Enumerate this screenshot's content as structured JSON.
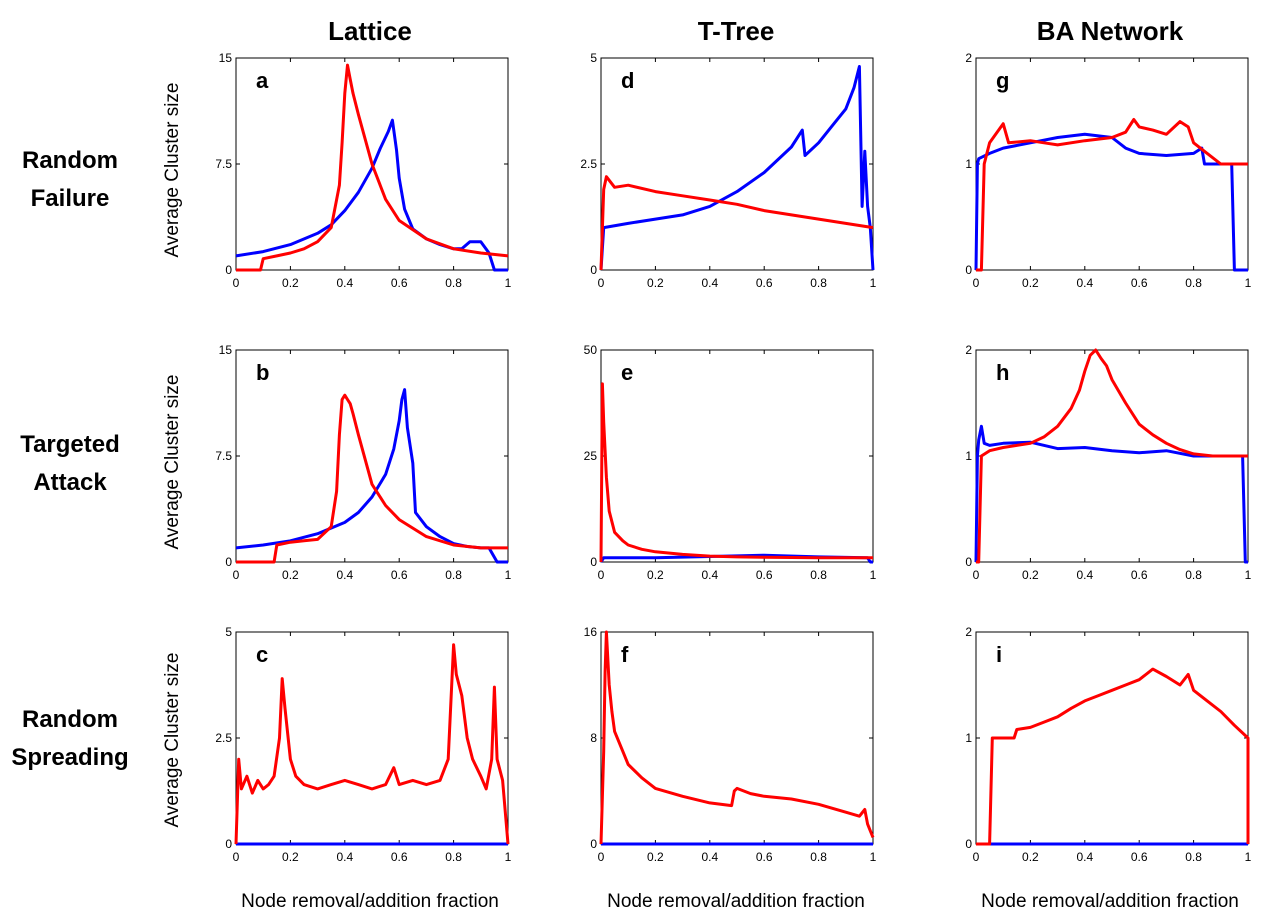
{
  "column_titles": [
    "Lattice",
    "T-Tree",
    "BA Network"
  ],
  "row_titles": [
    [
      "Random",
      "Failure"
    ],
    [
      "Targeted",
      "Attack"
    ],
    [
      "Random",
      "Spreading"
    ]
  ],
  "y_axis_label": "Average Cluster size",
  "x_axis_label": "Node removal/addition fraction",
  "colors": {
    "series_a": "#0000ff",
    "series_b": "#ff0000"
  },
  "chart_data": [
    {
      "panel": "a",
      "type": "line",
      "xlim": [
        0,
        1
      ],
      "ylim": [
        0,
        15
      ],
      "yticks": [
        "0",
        "7.5",
        "15"
      ],
      "xticks": [
        "0",
        "0.2",
        "0.4",
        "0.6",
        "0.8",
        "1"
      ],
      "series": [
        {
          "color": "blue",
          "x": [
            0,
            0.1,
            0.2,
            0.3,
            0.35,
            0.4,
            0.45,
            0.5,
            0.53,
            0.56,
            0.575,
            0.59,
            0.6,
            0.62,
            0.65,
            0.7,
            0.75,
            0.8,
            0.83,
            0.86,
            0.9,
            0.93,
            0.95,
            1
          ],
          "y": [
            1,
            1.3,
            1.8,
            2.6,
            3.2,
            4.2,
            5.5,
            7.2,
            8.6,
            9.8,
            10.6,
            8.5,
            6.5,
            4.3,
            2.9,
            2.2,
            1.8,
            1.5,
            1.5,
            2,
            2,
            1.2,
            0,
            0
          ]
        },
        {
          "color": "red",
          "x": [
            0,
            0.09,
            0.1,
            0.15,
            0.2,
            0.25,
            0.3,
            0.35,
            0.38,
            0.39,
            0.4,
            0.41,
            0.42,
            0.43,
            0.45,
            0.5,
            0.55,
            0.6,
            0.7,
            0.8,
            0.9,
            1
          ],
          "y": [
            0,
            0,
            0.8,
            1,
            1.2,
            1.5,
            2,
            3,
            6,
            9,
            12.5,
            14.5,
            13.5,
            12.5,
            11,
            7.5,
            5,
            3.5,
            2.2,
            1.5,
            1.2,
            1
          ]
        }
      ]
    },
    {
      "panel": "b",
      "type": "line",
      "xlim": [
        0,
        1
      ],
      "ylim": [
        0,
        15
      ],
      "yticks": [
        "0",
        "7.5",
        "15"
      ],
      "xticks": [
        "0",
        "0.2",
        "0.4",
        "0.6",
        "0.8",
        "1"
      ],
      "series": [
        {
          "color": "blue",
          "x": [
            0,
            0.1,
            0.2,
            0.3,
            0.4,
            0.45,
            0.5,
            0.55,
            0.58,
            0.6,
            0.61,
            0.62,
            0.63,
            0.65,
            0.66,
            0.7,
            0.75,
            0.8,
            0.85,
            0.9,
            0.93,
            0.96,
            1
          ],
          "y": [
            1,
            1.2,
            1.5,
            2,
            2.8,
            3.5,
            4.6,
            6.2,
            8,
            10,
            11.5,
            12.2,
            9.5,
            7,
            3.5,
            2.5,
            1.8,
            1.3,
            1.1,
            1,
            1,
            0,
            0
          ]
        },
        {
          "color": "red",
          "x": [
            0,
            0.14,
            0.15,
            0.2,
            0.25,
            0.3,
            0.35,
            0.37,
            0.38,
            0.39,
            0.4,
            0.41,
            0.42,
            0.43,
            0.45,
            0.5,
            0.55,
            0.6,
            0.7,
            0.8,
            0.9,
            1
          ],
          "y": [
            0,
            0,
            1.2,
            1.4,
            1.5,
            1.6,
            2.5,
            5,
            9,
            11.5,
            11.8,
            11.5,
            11.2,
            10.5,
            9,
            5.5,
            4,
            3,
            1.8,
            1.2,
            1,
            1
          ]
        }
      ]
    },
    {
      "panel": "c",
      "type": "line",
      "xlim": [
        0,
        1
      ],
      "ylim": [
        0,
        5
      ],
      "yticks": [
        "0",
        "2.5",
        "5"
      ],
      "xticks": [
        "0",
        "0.2",
        "0.4",
        "0.6",
        "0.8",
        "1"
      ],
      "series": [
        {
          "color": "blue",
          "x": [
            0,
            1
          ],
          "y": [
            0,
            0
          ]
        },
        {
          "color": "red",
          "x": [
            0,
            0.01,
            0.02,
            0.04,
            0.06,
            0.08,
            0.1,
            0.12,
            0.14,
            0.16,
            0.17,
            0.18,
            0.2,
            0.22,
            0.25,
            0.3,
            0.35,
            0.4,
            0.45,
            0.5,
            0.55,
            0.58,
            0.6,
            0.65,
            0.7,
            0.75,
            0.78,
            0.8,
            0.81,
            0.83,
            0.85,
            0.87,
            0.9,
            0.92,
            0.94,
            0.95,
            0.96,
            0.98,
            1
          ],
          "y": [
            0,
            2,
            1.3,
            1.6,
            1.2,
            1.5,
            1.3,
            1.4,
            1.6,
            2.5,
            3.9,
            3.2,
            2,
            1.6,
            1.4,
            1.3,
            1.4,
            1.5,
            1.4,
            1.3,
            1.4,
            1.8,
            1.4,
            1.5,
            1.4,
            1.5,
            2,
            4.7,
            4,
            3.5,
            2.5,
            2,
            1.6,
            1.3,
            2,
            3.7,
            2,
            1.5,
            0
          ]
        }
      ]
    },
    {
      "panel": "d",
      "type": "line",
      "xlim": [
        0,
        1
      ],
      "ylim": [
        0,
        5
      ],
      "yticks": [
        "0",
        "2.5",
        "5"
      ],
      "xticks": [
        "0",
        "0.2",
        "0.4",
        "0.6",
        "0.8",
        "1"
      ],
      "series": [
        {
          "color": "blue",
          "x": [
            0,
            0.01,
            0.1,
            0.2,
            0.3,
            0.4,
            0.5,
            0.6,
            0.7,
            0.74,
            0.75,
            0.8,
            0.85,
            0.9,
            0.93,
            0.95,
            0.96,
            0.97,
            0.98,
            0.99,
            1
          ],
          "y": [
            0,
            1,
            1.1,
            1.2,
            1.3,
            1.5,
            1.85,
            2.3,
            2.9,
            3.3,
            2.7,
            3,
            3.4,
            3.8,
            4.3,
            4.8,
            1.5,
            2.8,
            1.5,
            1,
            0
          ]
        },
        {
          "color": "red",
          "x": [
            0,
            0.01,
            0.02,
            0.05,
            0.1,
            0.2,
            0.3,
            0.4,
            0.5,
            0.6,
            0.7,
            0.8,
            0.9,
            1
          ],
          "y": [
            0,
            1.9,
            2.2,
            1.95,
            2,
            1.85,
            1.75,
            1.65,
            1.55,
            1.4,
            1.3,
            1.2,
            1.1,
            1
          ]
        }
      ]
    },
    {
      "panel": "e",
      "type": "line",
      "xlim": [
        0,
        1
      ],
      "ylim": [
        0,
        50
      ],
      "yticks": [
        "0",
        "25",
        "50"
      ],
      "xticks": [
        "0",
        "0.2",
        "0.4",
        "0.6",
        "0.8",
        "1"
      ],
      "series": [
        {
          "color": "blue",
          "x": [
            0,
            0.01,
            0.2,
            0.4,
            0.6,
            0.8,
            0.98,
            0.99,
            1
          ],
          "y": [
            0,
            1,
            1,
            1.3,
            1.6,
            1.2,
            1,
            0,
            0
          ]
        },
        {
          "color": "red",
          "x": [
            0,
            0.005,
            0.01,
            0.02,
            0.03,
            0.05,
            0.08,
            0.1,
            0.15,
            0.2,
            0.3,
            0.4,
            0.5,
            0.6,
            0.8,
            1
          ],
          "y": [
            0,
            42,
            33,
            20,
            12,
            7,
            5,
            4,
            3,
            2.4,
            1.8,
            1.4,
            1.2,
            1.1,
            1,
            1
          ]
        }
      ]
    },
    {
      "panel": "f",
      "type": "line",
      "xlim": [
        0,
        1
      ],
      "ylim": [
        0,
        16
      ],
      "yticks": [
        "0",
        "8",
        "16"
      ],
      "xticks": [
        "0",
        "0.2",
        "0.4",
        "0.6",
        "0.8",
        "1"
      ],
      "series": [
        {
          "color": "blue",
          "x": [
            0,
            1
          ],
          "y": [
            0,
            0
          ]
        },
        {
          "color": "red",
          "x": [
            0,
            0.01,
            0.015,
            0.02,
            0.03,
            0.04,
            0.05,
            0.08,
            0.1,
            0.15,
            0.2,
            0.3,
            0.4,
            0.48,
            0.49,
            0.5,
            0.55,
            0.6,
            0.7,
            0.8,
            0.9,
            0.95,
            0.97,
            0.98,
            0.99,
            1
          ],
          "y": [
            0,
            7,
            13,
            16,
            12,
            10,
            8.5,
            7,
            6,
            5,
            4.2,
            3.6,
            3.1,
            2.9,
            4,
            4.2,
            3.8,
            3.6,
            3.4,
            3,
            2.4,
            2.1,
            2.6,
            1.5,
            1,
            0.5
          ]
        }
      ]
    },
    {
      "panel": "g",
      "type": "line",
      "xlim": [
        0,
        1
      ],
      "ylim": [
        0,
        2
      ],
      "yticks": [
        "0",
        "1",
        "2"
      ],
      "xticks": [
        "0",
        "0.2",
        "0.4",
        "0.6",
        "0.8",
        "1"
      ],
      "series": [
        {
          "color": "blue",
          "x": [
            0,
            0.005,
            0.01,
            0.05,
            0.1,
            0.2,
            0.3,
            0.4,
            0.5,
            0.55,
            0.6,
            0.7,
            0.8,
            0.83,
            0.84,
            0.94,
            0.95,
            1
          ],
          "y": [
            0,
            1,
            1.05,
            1.1,
            1.15,
            1.2,
            1.25,
            1.28,
            1.25,
            1.15,
            1.1,
            1.08,
            1.1,
            1.15,
            1,
            1,
            0,
            0
          ]
        },
        {
          "color": "red",
          "x": [
            0,
            0.02,
            0.03,
            0.05,
            0.1,
            0.12,
            0.2,
            0.25,
            0.3,
            0.4,
            0.5,
            0.55,
            0.58,
            0.6,
            0.65,
            0.7,
            0.75,
            0.78,
            0.8,
            0.85,
            0.9,
            1
          ],
          "y": [
            0,
            0,
            1,
            1.2,
            1.38,
            1.2,
            1.22,
            1.2,
            1.18,
            1.22,
            1.25,
            1.3,
            1.42,
            1.35,
            1.32,
            1.28,
            1.4,
            1.35,
            1.2,
            1.1,
            1,
            1
          ]
        }
      ]
    },
    {
      "panel": "h",
      "type": "line",
      "xlim": [
        0,
        1
      ],
      "ylim": [
        0,
        2
      ],
      "yticks": [
        "0",
        "1",
        "2"
      ],
      "xticks": [
        "0",
        "0.2",
        "0.4",
        "0.6",
        "0.8",
        "1"
      ],
      "series": [
        {
          "color": "blue",
          "x": [
            0,
            0.005,
            0.01,
            0.02,
            0.03,
            0.05,
            0.1,
            0.2,
            0.3,
            0.4,
            0.5,
            0.6,
            0.7,
            0.8,
            0.9,
            0.98,
            0.99,
            1
          ],
          "y": [
            0,
            1,
            1.15,
            1.28,
            1.12,
            1.1,
            1.12,
            1.13,
            1.07,
            1.08,
            1.05,
            1.03,
            1.05,
            1,
            1,
            1,
            0,
            0
          ]
        },
        {
          "color": "red",
          "x": [
            0,
            0.01,
            0.02,
            0.05,
            0.1,
            0.2,
            0.25,
            0.3,
            0.35,
            0.38,
            0.4,
            0.42,
            0.44,
            0.46,
            0.48,
            0.5,
            0.55,
            0.6,
            0.65,
            0.7,
            0.75,
            0.8,
            0.87,
            0.9,
            1
          ],
          "y": [
            0,
            0,
            1,
            1.05,
            1.08,
            1.12,
            1.18,
            1.28,
            1.45,
            1.62,
            1.8,
            1.95,
            2,
            1.92,
            1.85,
            1.72,
            1.5,
            1.3,
            1.2,
            1.12,
            1.06,
            1.02,
            1,
            1,
            1
          ]
        }
      ]
    },
    {
      "panel": "i",
      "type": "line",
      "xlim": [
        0,
        1
      ],
      "ylim": [
        0,
        2
      ],
      "yticks": [
        "0",
        "1",
        "2"
      ],
      "xticks": [
        "0",
        "0.2",
        "0.4",
        "0.6",
        "0.8",
        "1"
      ],
      "series": [
        {
          "color": "blue",
          "x": [
            0,
            1
          ],
          "y": [
            0,
            0
          ]
        },
        {
          "color": "red",
          "x": [
            0,
            0.05,
            0.06,
            0.14,
            0.15,
            0.2,
            0.25,
            0.3,
            0.35,
            0.4,
            0.45,
            0.5,
            0.55,
            0.6,
            0.65,
            0.7,
            0.75,
            0.78,
            0.8,
            0.85,
            0.9,
            0.95,
            1,
            1
          ],
          "y": [
            0,
            0,
            1,
            1,
            1.08,
            1.1,
            1.15,
            1.2,
            1.28,
            1.35,
            1.4,
            1.45,
            1.5,
            1.55,
            1.65,
            1.58,
            1.5,
            1.6,
            1.45,
            1.35,
            1.25,
            1.12,
            1,
            0
          ]
        }
      ]
    }
  ]
}
